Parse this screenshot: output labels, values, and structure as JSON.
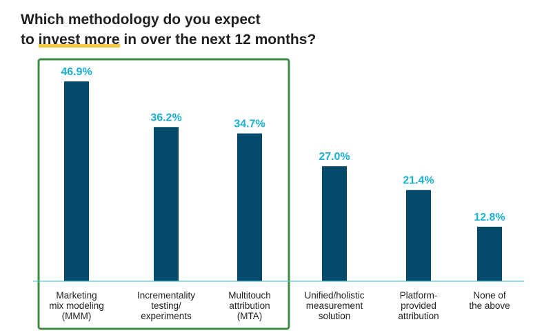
{
  "title": {
    "line1": "Which methodology do you expect",
    "line2_before": "to ",
    "line2_highlight": "invest more",
    "line2_after": " in over the next 12 months?"
  },
  "colors": {
    "bar": "#034a6b",
    "value_label": "#1aaed1",
    "axis": "#5ec3d6",
    "highlight_box": "#3e8a45",
    "highlight_underline": "#f5c842",
    "text": "#1f1f1f"
  },
  "chart_data": {
    "type": "bar",
    "categories": [
      [
        "Marketing",
        "mix modeling",
        "(MMM)"
      ],
      [
        "Incrementality",
        "testing/",
        "experiments"
      ],
      [
        "Multitouch",
        "attribution",
        "(MTA)"
      ],
      [
        "Unified/holistic",
        "measurement",
        "solution"
      ],
      [
        "Platform-",
        "provided",
        "attribution"
      ],
      [
        "None of",
        "the above"
      ]
    ],
    "values": [
      46.9,
      36.2,
      34.7,
      27.0,
      21.4,
      12.8
    ],
    "value_labels": [
      "46.9%",
      "36.2%",
      "34.7%",
      "27.0%",
      "21.4%",
      "12.8%"
    ],
    "ylim": [
      0,
      50
    ],
    "highlighted_categories": [
      0,
      1,
      2
    ],
    "grid": false,
    "legend": "none"
  }
}
